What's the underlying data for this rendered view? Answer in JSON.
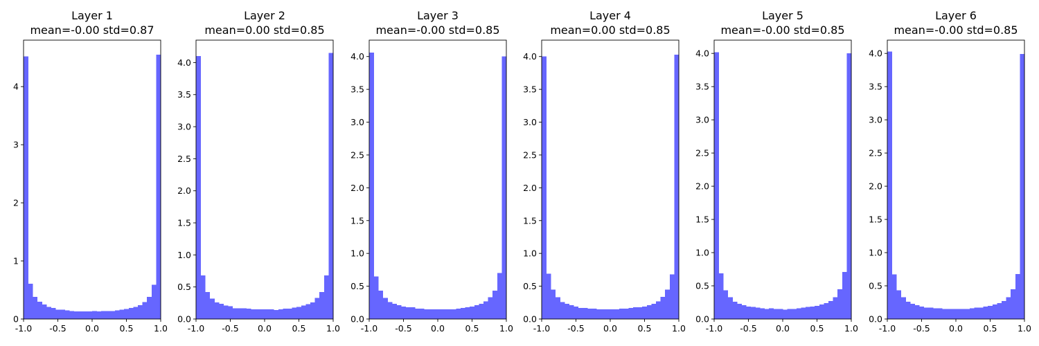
{
  "figure": {
    "bar_color": "#6666ff"
  },
  "chart_data": [
    {
      "type": "bar",
      "title": "Layer 1",
      "subtitle": "mean=-0.00 std=0.87",
      "xlabel": "",
      "ylabel": "",
      "xlim": [
        -1.0,
        1.0
      ],
      "ylim": [
        0,
        4.8
      ],
      "xticks": [
        -1.0,
        -0.5,
        0.0,
        0.5,
        1.0
      ],
      "xtick_labels": [
        "-1.0",
        "-0.5",
        "0.0",
        "0.5",
        "1.0"
      ],
      "yticks": [
        0,
        1,
        2,
        3,
        4
      ],
      "ytick_labels": [
        "0",
        "1",
        "2",
        "3",
        "4"
      ],
      "bin_edges_start": -1.0,
      "bin_width": 0.06667,
      "values": [
        4.52,
        0.61,
        0.38,
        0.3,
        0.25,
        0.21,
        0.19,
        0.16,
        0.16,
        0.15,
        0.14,
        0.13,
        0.13,
        0.13,
        0.13,
        0.14,
        0.13,
        0.14,
        0.14,
        0.14,
        0.15,
        0.16,
        0.17,
        0.19,
        0.21,
        0.24,
        0.29,
        0.38,
        0.59,
        4.55
      ]
    },
    {
      "type": "bar",
      "title": "Layer 2",
      "subtitle": "mean=0.00 std=0.85",
      "xlabel": "",
      "ylabel": "",
      "xlim": [
        -1.0,
        1.0
      ],
      "ylim": [
        0,
        4.35
      ],
      "xticks": [
        -1.0,
        -0.5,
        0.0,
        0.5,
        1.0
      ],
      "xtick_labels": [
        "-1.0",
        "-0.5",
        "0.0",
        "0.5",
        "1.0"
      ],
      "yticks": [
        0,
        0.5,
        1.0,
        1.5,
        2.0,
        2.5,
        3.0,
        3.5,
        4.0
      ],
      "ytick_labels": [
        "0.0",
        "0.5",
        "1.0",
        "1.5",
        "2.0",
        "2.5",
        "3.0",
        "3.5",
        "4.0"
      ],
      "bin_edges_start": -1.0,
      "bin_width": 0.06667,
      "values": [
        4.1,
        0.68,
        0.42,
        0.32,
        0.26,
        0.24,
        0.21,
        0.2,
        0.17,
        0.17,
        0.17,
        0.16,
        0.15,
        0.15,
        0.15,
        0.15,
        0.15,
        0.14,
        0.15,
        0.16,
        0.16,
        0.18,
        0.19,
        0.21,
        0.23,
        0.26,
        0.33,
        0.42,
        0.68,
        4.15
      ]
    },
    {
      "type": "bar",
      "title": "Layer 3",
      "subtitle": "mean=-0.00 std=0.85",
      "xlabel": "",
      "ylabel": "",
      "xlim": [
        -1.0,
        1.0
      ],
      "ylim": [
        0,
        4.25
      ],
      "xticks": [
        -1.0,
        -0.5,
        0.0,
        0.5,
        1.0
      ],
      "xtick_labels": [
        "-1.0",
        "-0.5",
        "0.0",
        "0.5",
        "1.0"
      ],
      "yticks": [
        0,
        0.5,
        1.0,
        1.5,
        2.0,
        2.5,
        3.0,
        3.5,
        4.0
      ],
      "ytick_labels": [
        "0.0",
        "0.5",
        "1.0",
        "1.5",
        "2.0",
        "2.5",
        "3.0",
        "3.5",
        "4.0"
      ],
      "bin_edges_start": -1.0,
      "bin_width": 0.06667,
      "values": [
        4.06,
        0.65,
        0.43,
        0.32,
        0.26,
        0.23,
        0.21,
        0.19,
        0.18,
        0.18,
        0.16,
        0.16,
        0.15,
        0.15,
        0.15,
        0.15,
        0.15,
        0.15,
        0.15,
        0.16,
        0.17,
        0.18,
        0.19,
        0.21,
        0.23,
        0.27,
        0.33,
        0.43,
        0.7,
        4.0
      ]
    },
    {
      "type": "bar",
      "title": "Layer 4",
      "subtitle": "mean=0.00 std=0.85",
      "xlabel": "",
      "ylabel": "",
      "xlim": [
        -1.0,
        1.0
      ],
      "ylim": [
        0,
        4.25
      ],
      "xticks": [
        -1.0,
        -0.5,
        0.0,
        0.5,
        1.0
      ],
      "xtick_labels": [
        "-1.0",
        "-0.5",
        "0.0",
        "0.5",
        "1.0"
      ],
      "yticks": [
        0,
        0.5,
        1.0,
        1.5,
        2.0,
        2.5,
        3.0,
        3.5,
        4.0
      ],
      "ytick_labels": [
        "0.0",
        "0.5",
        "1.0",
        "1.5",
        "2.0",
        "2.5",
        "3.0",
        "3.5",
        "4.0"
      ],
      "bin_edges_start": -1.0,
      "bin_width": 0.06667,
      "values": [
        4.0,
        0.69,
        0.45,
        0.33,
        0.26,
        0.23,
        0.21,
        0.19,
        0.17,
        0.17,
        0.16,
        0.16,
        0.15,
        0.15,
        0.15,
        0.15,
        0.15,
        0.16,
        0.16,
        0.17,
        0.18,
        0.18,
        0.19,
        0.21,
        0.23,
        0.27,
        0.34,
        0.45,
        0.68,
        4.03
      ]
    },
    {
      "type": "bar",
      "title": "Layer 5",
      "subtitle": "mean=-0.00 std=0.85",
      "xlabel": "",
      "ylabel": "",
      "xlim": [
        -1.0,
        1.0
      ],
      "ylim": [
        0,
        4.2
      ],
      "xticks": [
        -1.0,
        -0.5,
        0.0,
        0.5,
        1.0
      ],
      "xtick_labels": [
        "-1.0",
        "-0.5",
        "0.0",
        "0.5",
        "1.0"
      ],
      "yticks": [
        0,
        0.5,
        1.0,
        1.5,
        2.0,
        2.5,
        3.0,
        3.5,
        4.0
      ],
      "ytick_labels": [
        "0.0",
        "0.5",
        "1.0",
        "1.5",
        "2.0",
        "2.5",
        "3.0",
        "3.5",
        "4.0"
      ],
      "bin_edges_start": -1.0,
      "bin_width": 0.06667,
      "values": [
        4.02,
        0.69,
        0.43,
        0.33,
        0.26,
        0.23,
        0.21,
        0.19,
        0.18,
        0.17,
        0.16,
        0.15,
        0.16,
        0.15,
        0.15,
        0.14,
        0.15,
        0.15,
        0.16,
        0.17,
        0.18,
        0.19,
        0.2,
        0.22,
        0.24,
        0.27,
        0.33,
        0.45,
        0.71,
        4.0
      ]
    },
    {
      "type": "bar",
      "title": "Layer 6",
      "subtitle": "mean=-0.00 std=0.85",
      "xlabel": "",
      "ylabel": "",
      "xlim": [
        -1.0,
        1.0
      ],
      "ylim": [
        0,
        4.2
      ],
      "xticks": [
        -1.0,
        -0.5,
        0.0,
        0.5,
        1.0
      ],
      "xtick_labels": [
        "-1.0",
        "-0.5",
        "0.0",
        "0.5",
        "1.0"
      ],
      "yticks": [
        0,
        0.5,
        1.0,
        1.5,
        2.0,
        2.5,
        3.0,
        3.5,
        4.0
      ],
      "ytick_labels": [
        "0.0",
        "0.5",
        "1.0",
        "1.5",
        "2.0",
        "2.5",
        "3.0",
        "3.5",
        "4.0"
      ],
      "bin_edges_start": -1.0,
      "bin_width": 0.06667,
      "values": [
        4.03,
        0.67,
        0.43,
        0.33,
        0.26,
        0.23,
        0.21,
        0.19,
        0.17,
        0.17,
        0.16,
        0.16,
        0.15,
        0.15,
        0.15,
        0.15,
        0.15,
        0.15,
        0.16,
        0.17,
        0.17,
        0.19,
        0.2,
        0.22,
        0.24,
        0.27,
        0.33,
        0.45,
        0.68,
        3.99
      ]
    }
  ]
}
